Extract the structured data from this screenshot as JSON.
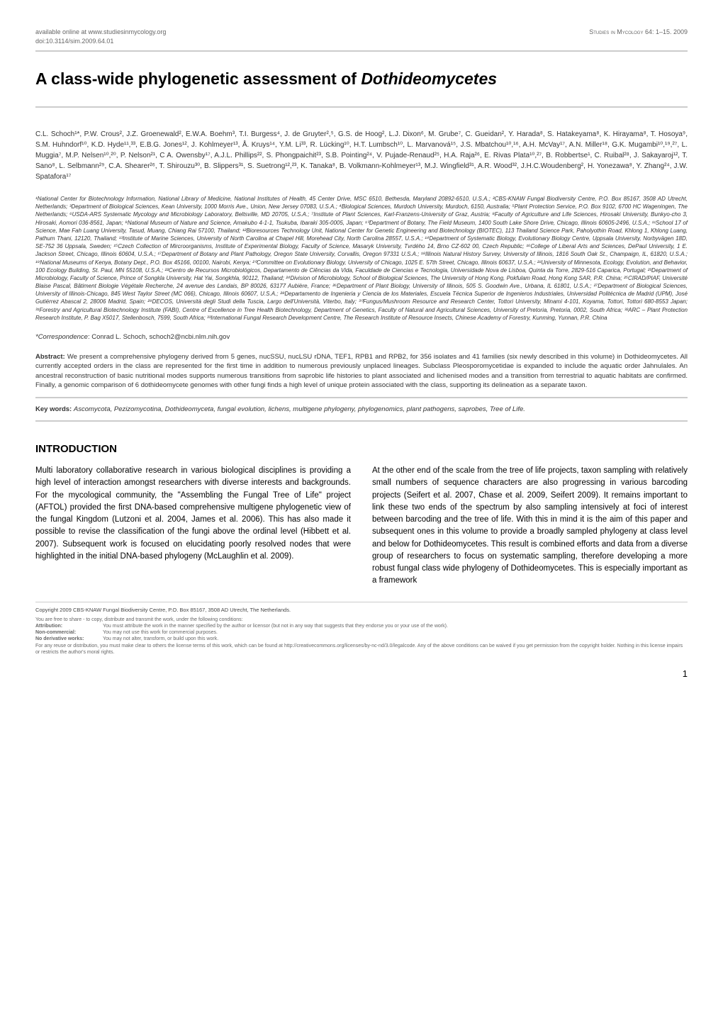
{
  "header": {
    "available": "available online at www.studiesinmycology.org",
    "doi": "doi:10.3114/sim.2009.64.01",
    "journal": "Studies in Mycology 64: 1–15. 2009"
  },
  "title_plain": "A class-wide phylogenetic assessment of ",
  "title_italic": "Dothideomycetes",
  "authors": "C.L. Schoch¹*, P.W. Crous², J.Z. Groenewald², E.W.A. Boehm³, T.I. Burgess⁴, J. de Gruyter²,⁵, G.S. de Hoog², L.J. Dixon⁶, M. Grube⁷, C. Gueidan², Y. Harada⁸, S. Hatakeyama⁸, K. Hirayama⁸, T. Hosoya⁹, S.M. Huhndorf¹⁰, K.D. Hyde¹¹,³³, E.B.G. Jones¹², J. Kohlmeyer¹³, Å. Kruys¹⁴, Y.M. Li³³, R. Lücking¹⁰, H.T. Lumbsch¹⁰, L. Marvanová¹⁵, J.S. Mbatchou¹⁰,¹⁶, A.H. McVay¹⁷, A.N. Miller¹⁸, G.K. Mugambi¹⁰,¹⁹,²⁷, L. Muggia⁷, M.P. Nelsen¹⁰,²⁰, P. Nelson²¹, C A. Owensby¹⁷, A.J.L. Phillips²², S. Phongpaichit²³, S.B. Pointing²⁴, V. Pujade-Renaud²⁵, H.A. Raja²⁶, E. Rivas Plata¹⁰,²⁷, B. Robbertse¹, C. Ruibal²⁸, J. Sakayaroj¹², T. Sano⁸, L. Selbmann²⁹, C.A. Shearer²⁶, T. Shirouzu³⁰, B. Slippers³¹, S. Suetrong¹²,²³, K. Tanaka⁸, B. Volkmann-Kohlmeyer¹³, M.J. Wingfield³¹, A.R. Wood³², J.H.C.Woudenberg², H. Yonezawa⁸, Y. Zhang²⁴, J.W. Spatafora¹⁷",
  "affiliations": "¹National Center for Biotechnology Information, National Library of Medicine, National Institutes of Health, 45 Center Drive, MSC 6510, Bethesda, Maryland 20892-6510, U.S.A.; ²CBS-KNAW Fungal Biodiversity Centre, P.O. Box 85167, 3508 AD Utrecht, Netherlands; ³Department of Biological Sciences, Kean University, 1000 Morris Ave., Union, New Jersey 07083, U.S.A.; ⁴Biological Sciences, Murdoch University, Murdoch, 6150, Australia; ⁵Plant Protection Service, P.O. Box 9102, 6700 HC Wageningen, The Netherlands; ⁶USDA-ARS Systematic Mycology and Microbiology Laboratory, Beltsville, MD 20705, U.S.A.; ⁷Institute of Plant Sciences, Karl-Franzens-University of Graz, Austria; ⁸Faculty of Agriculture and Life Sciences, Hirosaki University, Bunkyo-cho 3, Hirosaki, Aomori 036-8561, Japan; ⁹National Museum of Nature and Science, Amakubo 4-1-1, Tsukuba, Ibaraki 305-0005, Japan; ¹⁰Department of Botany, The Field Museum, 1400 South Lake Shore Drive, Chicago, Illinois 60605-2496, U.S.A.; ¹¹School 17 of Science, Mae Fah Luang University, Tasud, Muang, Chiang Rai 57100, Thailand; ¹²Bioresources Technology Unit, National Center for Genetic Engineering and Biotechnology (BIOTEC), 113 Thailand Science Park, Paholyothin Road, Khlong 1, Khlong Luang, Pathum Thani, 12120, Thailand; ¹³Institute of Marine Sciences, University of North Carolina at Chapel Hill, Morehead City, North Carolina 28557, U.S.A.; ¹⁴Department of Systematic Biology, Evolutionary Biology Centre, Uppsala University, Norbyvägen 18D, SE-752 36 Uppsala, Sweden; ¹⁵Czech Collection of Mircroorganisms, Institute of Experimental Biology, Faculty of Science, Masaryk University, Tvrdého 14, Brno CZ-602 00, Czech Republic; ¹⁶College of Liberal Arts and Sciences, DePaul University, 1 E. Jackson Street, Chicago, Illinois 60604, U.S.A.; ¹⁷Department of Botany and Plant Pathology, Oregon State University, Corvallis, Oregon 97331 U.S.A.; ¹⁸Illinois Natural History Survey, University of Illinois, 1816 South Oak St., Champaign, IL, 61820, U.S.A.; ¹⁹National Museums of Kenya, Botany Dept., P.O. Box 45166, 00100, Nairobi, Kenya; ²⁰Committee on Evolutionary Biology, University of Chicago, 1025 E. 57th Street, Chicago, Illinois 60637, U.S.A.; ²¹University of Minnesota, Ecology, Evolution, and Behavior, 100 Ecology Building, St. Paul, MN 55108, U.S.A.; ²²Centro de Recursos Microbiológicos, Departamento de Ciências da Vida, Faculdade de Ciencias e Tecnologia, Universidade Nova de Lisboa, Quinta da Torre, 2829-516 Caparica, Portugal; ²³Department of Microbiology, Faculty of Science, Prince of Songkla University, Hat Yai, Songkhla, 90112, Thailand; ²⁴Division of Microbiology, School of Biological Sciences, The University of Hong Kong, Pokfulam Road, Hong Kong SAR, P.R. China; ²⁵CIRAD/PIAF, Université Blaise Pascal, Bâtiment Biologie Végétale Recherche, 24 avenue des Landais, BP 80026, 63177 Aubière, France; ²⁶Department of Plant Biology, University of Illinois, 505 S. Goodwin Ave., Urbana, IL 61801, U.S.A.; ²⁷Department of Biological Sciences, University of Illinois-Chicago, 845 West Taylor Street (MC 066), Chicago, Illinois 60607, U.S.A.; ²⁸Departamento de Ingenieria y Ciencia de los Materiales, Escuela Técnica Superior de Ingenieros Industriales, Universidad Politécnica de Madrid (UPM), José Gutiérrez Abascal 2, 28006 Madrid, Spain; ²⁹DECOS, Università degli Studi della Tuscia, Largo dell'Università, Viterbo, Italy; ³⁰Fungus/Mushroom Resource and Research Center, Tottori University, Minami 4-101, Koyama, Tottori, Tottori 680-8553 Japan; ³¹Forestry and Agricultural Biotechnology Institute (FABI), Centre of Excellence in Tree Health Biotechnology, Department of Genetics, Faculty of Natural and Agricultural Sciences, University of Pretoria, Pretoria, 0002, South Africa; ³²ARC – Plant Protection Research Institute, P. Bag X5017, Stellenbosch, 7599, South Africa; ³³International Fungal Research Development Centre, The Research Institute of Resource Insects, Chinese Academy of Forestry, Kunming, Yunnan, P.R. China",
  "correspondence_label": "*Correspondence",
  "correspondence_text": ": Conrad L. Schoch, schoch2@ncbi.nlm.nih.gov",
  "abstract_label": "Abstract: ",
  "abstract_text": "We present a comprehensive phylogeny derived from 5 genes, nucSSU, nucLSU rDNA, TEF1, RPB1 and RPB2, for 356 isolates and 41 families (six newly described in this volume) in Dothideomycetes. All currently accepted orders in the class are represented for the first time in addition to numerous previously unplaced lineages. Subclass Pleosporomycetidae is expanded to include the aquatic order Jahnulales. An ancestral reconstruction of basic nutritional modes supports numerous transitions from saprobic life histories to plant associated and lichenised modes and a transition from terrestrial to aquatic habitats are confirmed. Finally, a genomic comparison of 6 dothideomycete genomes with other fungi finds a high level of unique protein associated with the class, supporting its delineation as a separate taxon.",
  "keywords_label": "Key words: ",
  "keywords_text": "Ascomycota, Pezizomycotina, Dothideomyceta, fungal evolution, lichens, multigene phylogeny, phylogenomics, plant pathogens, saprobes, Tree of Life.",
  "intro_heading": "INTRODUCTION",
  "intro_col1": "Multi laboratory collaborative research in various biological disciplines is providing a high level of interaction amongst researchers with diverse interests and backgrounds. For the mycological community, the \"Assembling the Fungal Tree of Life\" project (AFTOL) provided the first DNA-based comprehensive multigene phylogenetic view of the fungal Kingdom (Lutzoni et al. 2004, James et al. 2006). This has also made it possible to revise the classification of the fungi above the ordinal level (Hibbett et al. 2007). Subsequent work is focused on elucidating poorly resolved nodes that were highlighted in the initial DNA-based phylogeny (McLaughlin et al. 2009).",
  "intro_col2": "At the other end of the scale from the tree of life projects, taxon sampling with relatively small numbers of sequence characters are also progressing in various barcoding projects (Seifert et al. 2007, Chase et al. 2009, Seifert 2009). It remains important to link these two ends of the spectrum by also sampling intensively at foci of interest between barcoding and the tree of life. With this in mind it is the aim of this paper and subsequent ones in this volume to provide a broadly sampled phylogeny at class level and below for Dothideomycetes. This result is combined efforts and data from a diverse group of researchers to focus on systematic sampling, therefore developing a more robust fungal class wide phylogeny of Dothideomycetes. This is especially important as a framework",
  "copyright": "Copyright 2009 CBS-KNAW Fungal Biodiversity Centre, P.O. Box 85167, 3508 AD Utrecht, The Netherlands.",
  "license_intro": "You are free to share - to copy, distribute and transmit the work, under the following conditions:",
  "license_attribution_label": "Attribution:",
  "license_attribution": "You must attribute the work in the manner specified by the author or licensor (but not in any way that suggests that they endorse you or your use of the work).",
  "license_noncommercial_label": "Non-commercial:",
  "license_noncommercial": "You may not use this work for commercial purposes.",
  "license_noderivative_label": "No derivative works:",
  "license_noderivative": "You may not alter, transform, or build upon this work.",
  "license_footer": "For any reuse or distribution, you must make clear to others the license terms of this work, which can be found at http://creativecommons.org/licenses/by-nc-nd/3.0/legalcode. Any of the above conditions can be waived if you get permission from the copyright holder. Nothing in this license impairs or restricts the author's moral rights.",
  "page_number": "1"
}
